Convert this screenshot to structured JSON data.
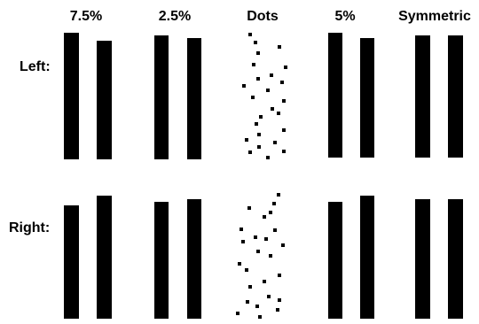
{
  "columns": [
    {
      "label": "7.5%",
      "kind": "bars"
    },
    {
      "label": "2.5%",
      "kind": "bars"
    },
    {
      "label": "Dots",
      "kind": "dots"
    },
    {
      "label": "5%",
      "kind": "bars"
    },
    {
      "label": "Symmetric",
      "kind": "bars"
    }
  ],
  "rows": [
    {
      "label": "Left:"
    },
    {
      "label": "Right:"
    }
  ],
  "colors": {
    "ink": "#000000",
    "background": "#ffffff"
  }
}
